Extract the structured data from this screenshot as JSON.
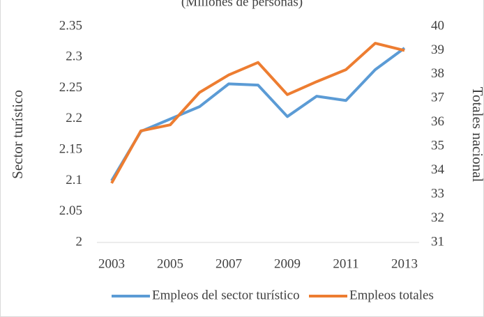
{
  "chart_data": {
    "type": "line",
    "title": "(Millones de personas)",
    "y_label": "Sector turístico",
    "y2_label": "Totales nacional",
    "x": [
      2003,
      2004,
      2005,
      2006,
      2007,
      2008,
      2009,
      2010,
      2011,
      2012,
      2013
    ],
    "xlim": [
      2002.5,
      2013.5
    ],
    "xticks": [
      2003,
      2005,
      2007,
      2009,
      2011,
      2013
    ],
    "ylim": [
      2,
      2.35
    ],
    "yticks": [
      2,
      2.05,
      2.1,
      2.15,
      2.2,
      2.25,
      2.3,
      2.35
    ],
    "y2lim": [
      31,
      40
    ],
    "y2ticks": [
      31,
      32,
      33,
      34,
      35,
      36,
      37,
      38,
      39,
      40
    ],
    "grid": false,
    "legend": "bottom",
    "series": [
      {
        "name": "Empleos del sector turístico",
        "color": "#5b9bd5",
        "values": [
          2.1,
          2.18,
          2.2,
          2.22,
          2.257,
          2.255,
          2.204,
          2.237,
          2.23,
          2.28,
          2.315
        ]
      },
      {
        "name": "Empleos totales",
        "color": "#ed7d31",
        "axis": "y2",
        "values": [
          33.47,
          35.65,
          35.9,
          37.25,
          37.98,
          38.5,
          37.16,
          37.7,
          38.2,
          39.3,
          39.0
        ]
      }
    ]
  }
}
